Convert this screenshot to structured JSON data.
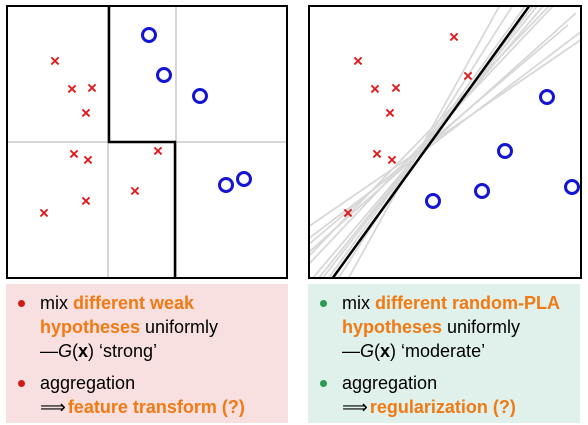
{
  "colors": {
    "cross": "#e01818",
    "circle": "#1414d4",
    "grid": "#c8c8c8",
    "boundary": "#000000",
    "pla_lines": "#d8d8d8",
    "highlight": "#f07a14",
    "left_box_bg": "#f8e0e0",
    "right_box_bg": "#dff1ea"
  },
  "left_panel": {
    "bullet1": {
      "prefix": "mix ",
      "highlight": "different weak hypotheses",
      "suffix": " uniformly",
      "line2_prefix": "—",
      "func": "G",
      "arg": "x",
      "quality": "‘strong’"
    },
    "bullet2": {
      "line1": "aggregation",
      "arrow": "⟹",
      "result": "feature transform (?)"
    }
  },
  "right_panel": {
    "bullet1": {
      "prefix": "mix ",
      "highlight": "different random-PLA hypotheses",
      "suffix": " uniformly",
      "line2_prefix": "—",
      "func": "G",
      "arg": "x",
      "quality": "‘moderate’"
    },
    "bullet2": {
      "line1": "aggregation",
      "arrow": "⟹",
      "result": "regularization (?)"
    }
  }
}
